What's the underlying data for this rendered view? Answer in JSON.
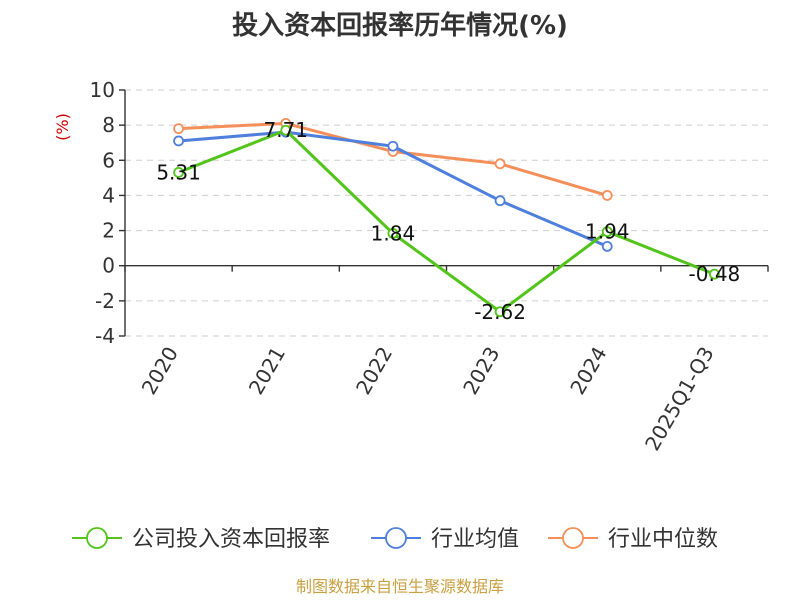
{
  "chart_data": {
    "type": "line",
    "title": "投入资本回报率历年情况(%)",
    "ylabel": "(%)",
    "categories": [
      "2020",
      "2021",
      "2022",
      "2023",
      "2024",
      "2025Q1-Q3"
    ],
    "ylim": [
      -4,
      10
    ],
    "yticks": [
      -4,
      -2,
      0,
      2,
      4,
      6,
      8,
      10
    ],
    "grid": true,
    "legend_position": "bottom",
    "series": [
      {
        "name": "公司投入资本回报率",
        "color": "#52c41a",
        "values": [
          5.31,
          7.71,
          1.84,
          -2.62,
          1.94,
          -0.48
        ],
        "labels": [
          "5.31",
          "7.71",
          "1.84",
          "-2.62",
          "1.94",
          "-0.48"
        ]
      },
      {
        "name": "行业均值",
        "color": "#4f7fdc",
        "values": [
          7.1,
          7.6,
          6.8,
          3.7,
          1.1,
          null
        ]
      },
      {
        "name": "行业中位数",
        "color": "#f58f5a",
        "values": [
          7.8,
          8.1,
          6.5,
          5.8,
          4.0,
          null
        ]
      }
    ]
  },
  "source": "制图数据来自恒生聚源数据库"
}
